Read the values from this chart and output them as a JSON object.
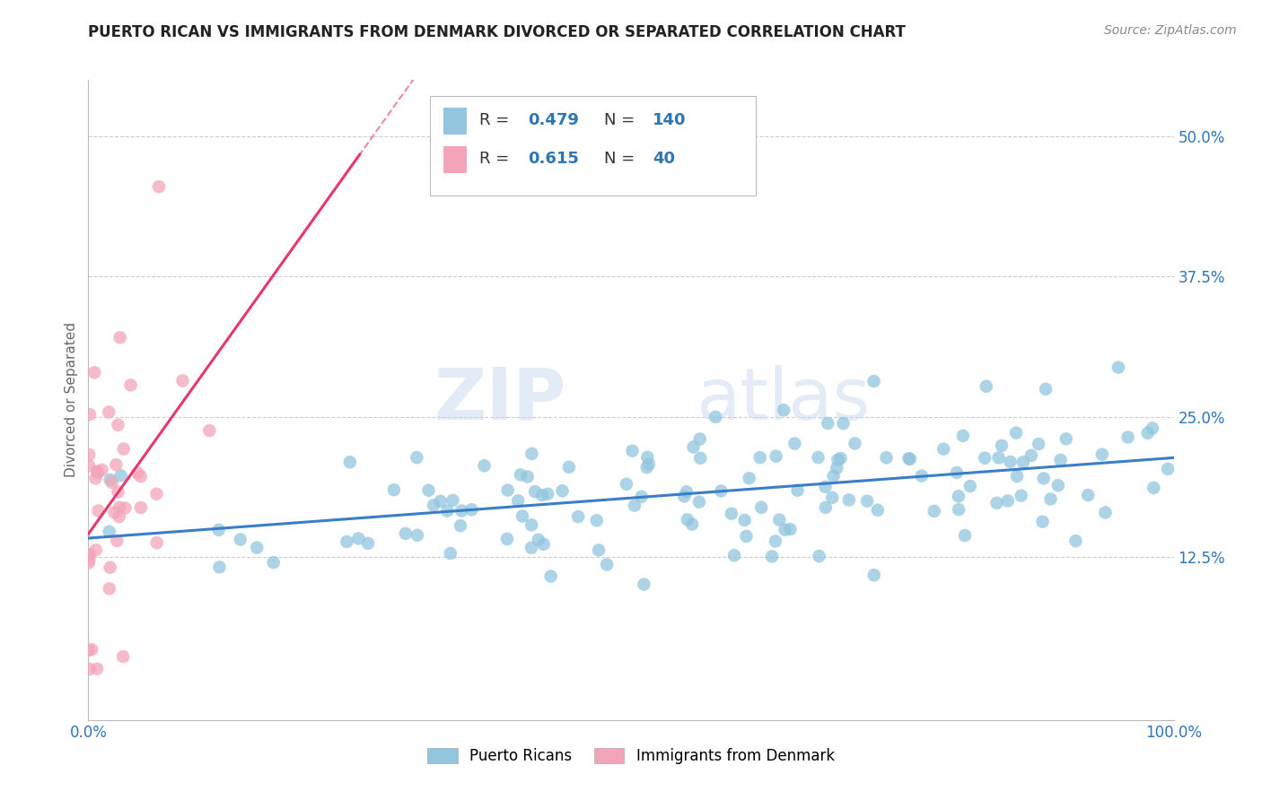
{
  "title": "PUERTO RICAN VS IMMIGRANTS FROM DENMARK DIVORCED OR SEPARATED CORRELATION CHART",
  "source": "Source: ZipAtlas.com",
  "ylabel": "Divorced or Separated",
  "watermark_zip": "ZIP",
  "watermark_atlas": "atlas",
  "xlim": [
    0,
    1.0
  ],
  "ylim": [
    -0.02,
    0.55
  ],
  "yticks": [
    0.125,
    0.25,
    0.375,
    0.5
  ],
  "yticklabels": [
    "12.5%",
    "25.0%",
    "37.5%",
    "50.0%"
  ],
  "blue_color": "#92c5de",
  "pink_color": "#f4a4b8",
  "blue_line_color": "#3a7dc9",
  "pink_line_color": "#e8376e",
  "R_blue": 0.479,
  "N_blue": 140,
  "R_pink": 0.615,
  "N_pink": 40,
  "legend_label_blue": "Puerto Ricans",
  "legend_label_pink": "Immigrants from Denmark",
  "title_color": "#222222",
  "axis_label_color": "#666666",
  "value_color": "#2e75b6",
  "background_color": "#ffffff",
  "grid_color": "#cccccc",
  "seed_blue": 42,
  "seed_pink": 99
}
